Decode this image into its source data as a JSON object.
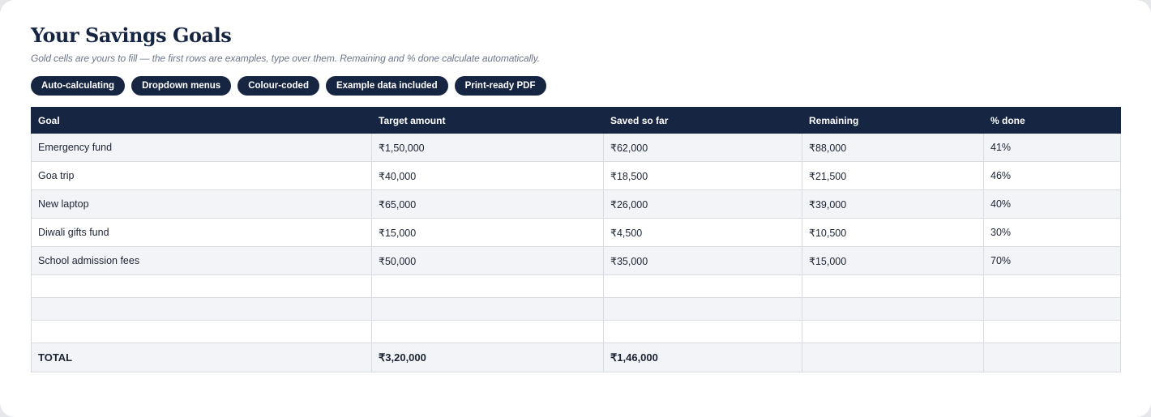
{
  "page": {
    "title": "Your Savings Goals",
    "subtitle": "Gold cells are yours to fill — the first rows are examples, type over them. Remaining and % done calculate automatically."
  },
  "tags": [
    "Auto-calculating",
    "Dropdown menus",
    "Colour-coded",
    "Example data included",
    "Print-ready PDF"
  ],
  "table": {
    "headers": [
      "Goal",
      "Target amount",
      "Saved so far",
      "Remaining",
      "% done"
    ],
    "rows": [
      [
        "Emergency fund",
        "₹1,50,000",
        "₹62,000",
        "₹88,000",
        "41%"
      ],
      [
        "Goa trip",
        "₹40,000",
        "₹18,500",
        "₹21,500",
        "46%"
      ],
      [
        "New laptop",
        "₹65,000",
        "₹26,000",
        "₹39,000",
        "40%"
      ],
      [
        "Diwali gifts fund",
        "₹15,000",
        "₹4,500",
        "₹10,500",
        "30%"
      ],
      [
        "School admission fees",
        "₹50,000",
        "₹35,000",
        "₹15,000",
        "70%"
      ],
      [
        "",
        "",
        "",
        "",
        ""
      ],
      [
        "",
        "",
        "",
        "",
        ""
      ],
      [
        "",
        "",
        "",
        "",
        ""
      ]
    ],
    "total": [
      "TOTAL",
      "₹3,20,000",
      "₹1,46,000",
      "",
      ""
    ]
  },
  "colors": {
    "navy": "#162542",
    "row_alt": "#f3f4f7",
    "border": "#d8dbe2"
  }
}
